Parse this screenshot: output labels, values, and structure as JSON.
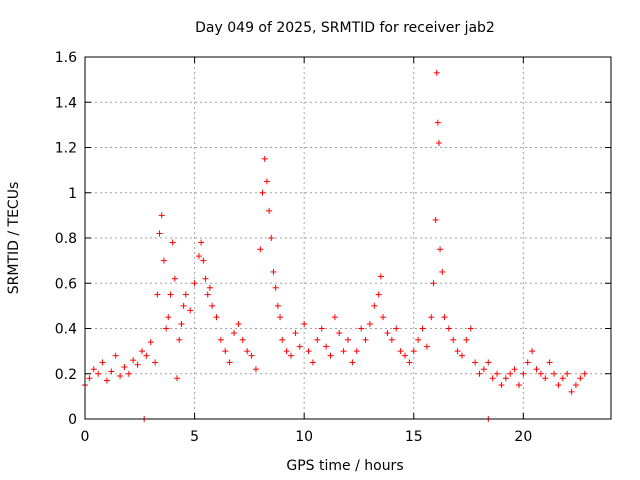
{
  "chart_data": {
    "type": "scatter",
    "title": "Day 049 of 2025, SRMTID for receiver jab2",
    "xlabel": "GPS time / hours",
    "ylabel": "SRMTID / TECUs",
    "xlim": [
      0,
      24
    ],
    "ylim": [
      0,
      1.6
    ],
    "xticks": [
      0,
      5,
      10,
      15,
      20
    ],
    "xtick_labels": [
      "0",
      "5",
      "10",
      "15",
      "20"
    ],
    "yticks": [
      0,
      0.2,
      0.4,
      0.6,
      0.8,
      1.0,
      1.2,
      1.4,
      1.6
    ],
    "ytick_labels": [
      "0",
      "0.2",
      "0.4",
      "0.6",
      "0.8",
      "1",
      "1.2",
      "1.4",
      "1.6"
    ],
    "grid": true,
    "marker": "+",
    "marker_color": "#ff0000",
    "series": [
      {
        "name": "SRMTID",
        "x": [
          0.0,
          0.2,
          0.4,
          0.6,
          0.8,
          1.0,
          1.2,
          1.4,
          1.6,
          1.8,
          2.0,
          2.2,
          2.4,
          2.6,
          2.8,
          3.0,
          3.2,
          3.3,
          3.4,
          3.5,
          3.6,
          3.7,
          3.8,
          3.9,
          4.0,
          4.1,
          4.2,
          4.3,
          4.4,
          4.5,
          4.6,
          4.8,
          5.0,
          5.2,
          5.3,
          5.4,
          5.5,
          5.6,
          5.7,
          5.8,
          6.0,
          6.2,
          6.4,
          6.6,
          6.8,
          7.0,
          7.2,
          7.4,
          7.6,
          7.8,
          8.0,
          8.1,
          8.2,
          8.3,
          8.4,
          8.5,
          8.6,
          8.7,
          8.8,
          8.9,
          9.0,
          9.2,
          9.4,
          9.6,
          9.8,
          10.0,
          10.2,
          10.4,
          10.6,
          10.8,
          11.0,
          11.2,
          11.4,
          11.6,
          11.8,
          12.0,
          12.2,
          12.4,
          12.6,
          12.8,
          13.0,
          13.2,
          13.4,
          13.5,
          13.6,
          13.8,
          14.0,
          14.2,
          14.4,
          14.6,
          14.8,
          15.0,
          15.2,
          15.4,
          15.6,
          15.8,
          15.9,
          16.0,
          16.05,
          16.1,
          16.15,
          16.2,
          16.3,
          16.4,
          16.6,
          16.8,
          17.0,
          17.2,
          17.4,
          17.6,
          17.8,
          18.0,
          18.2,
          18.4,
          18.6,
          18.8,
          19.0,
          19.2,
          19.4,
          19.6,
          19.8,
          20.0,
          20.2,
          20.4,
          20.6,
          20.8,
          21.0,
          21.2,
          21.4,
          21.6,
          21.8,
          22.0,
          22.2,
          22.4,
          22.6,
          22.8,
          2.7,
          18.4
        ],
        "y": [
          0.15,
          0.18,
          0.22,
          0.2,
          0.25,
          0.17,
          0.21,
          0.28,
          0.19,
          0.23,
          0.2,
          0.26,
          0.24,
          0.3,
          0.28,
          0.34,
          0.25,
          0.55,
          0.82,
          0.9,
          0.7,
          0.4,
          0.45,
          0.55,
          0.78,
          0.62,
          0.18,
          0.35,
          0.42,
          0.5,
          0.55,
          0.48,
          0.6,
          0.72,
          0.78,
          0.7,
          0.62,
          0.55,
          0.58,
          0.5,
          0.45,
          0.35,
          0.3,
          0.25,
          0.38,
          0.42,
          0.35,
          0.3,
          0.28,
          0.22,
          0.75,
          1.0,
          1.15,
          1.05,
          0.92,
          0.8,
          0.65,
          0.58,
          0.5,
          0.45,
          0.35,
          0.3,
          0.28,
          0.38,
          0.32,
          0.42,
          0.3,
          0.25,
          0.35,
          0.4,
          0.32,
          0.28,
          0.45,
          0.38,
          0.3,
          0.35,
          0.25,
          0.3,
          0.4,
          0.35,
          0.42,
          0.5,
          0.55,
          0.63,
          0.45,
          0.38,
          0.35,
          0.4,
          0.3,
          0.28,
          0.25,
          0.3,
          0.35,
          0.4,
          0.32,
          0.45,
          0.6,
          0.88,
          1.53,
          1.31,
          1.22,
          0.75,
          0.65,
          0.45,
          0.4,
          0.35,
          0.3,
          0.28,
          0.35,
          0.4,
          0.25,
          0.2,
          0.22,
          0.25,
          0.18,
          0.2,
          0.15,
          0.18,
          0.2,
          0.22,
          0.15,
          0.2,
          0.25,
          0.3,
          0.22,
          0.2,
          0.18,
          0.25,
          0.2,
          0.15,
          0.18,
          0.2,
          0.12,
          0.15,
          0.18,
          0.2,
          0.0,
          0.0
        ]
      }
    ]
  }
}
